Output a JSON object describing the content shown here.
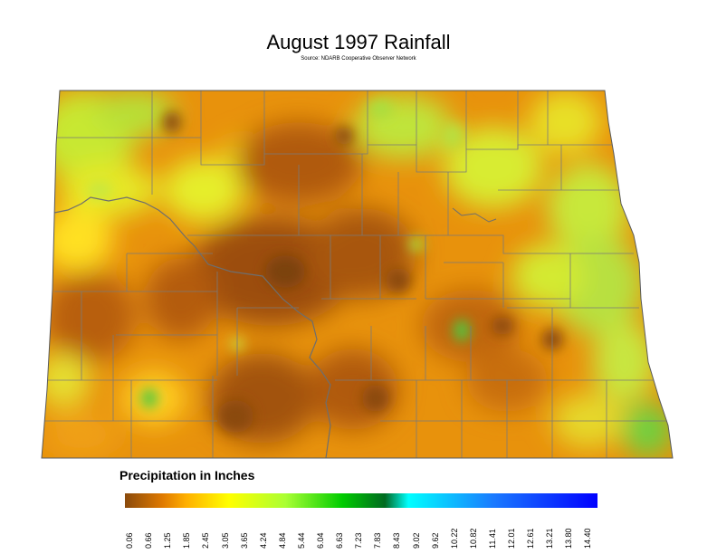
{
  "map": {
    "title": "August 1997 Rainfall",
    "source": "Source: NDARB Cooperative Observer Network",
    "region": "North Dakota"
  },
  "legend": {
    "title": "Precipitation in Inches",
    "ticks": [
      "0.06",
      "0.66",
      "1.25",
      "1.85",
      "2.45",
      "3.05",
      "3.65",
      "4.24",
      "4.84",
      "5.44",
      "6.04",
      "6.63",
      "7.23",
      "7.83",
      "8.43",
      "9.02",
      "9.62",
      "10.22",
      "10.82",
      "11.41",
      "12.01",
      "12.61",
      "13.21",
      "13.80",
      "14.40"
    ],
    "colors": {
      "stop_0": "#8a4a0c",
      "stop_1": "#e07a00",
      "stop_2": "#ffb000",
      "stop_3": "#ffff00",
      "stop_4": "#aaff33",
      "stop_5": "#00cc00",
      "stop_6": "#006a20",
      "stop_7": "#00ffff",
      "stop_8": "#1a7aff",
      "stop_9": "#0000ff"
    }
  }
}
